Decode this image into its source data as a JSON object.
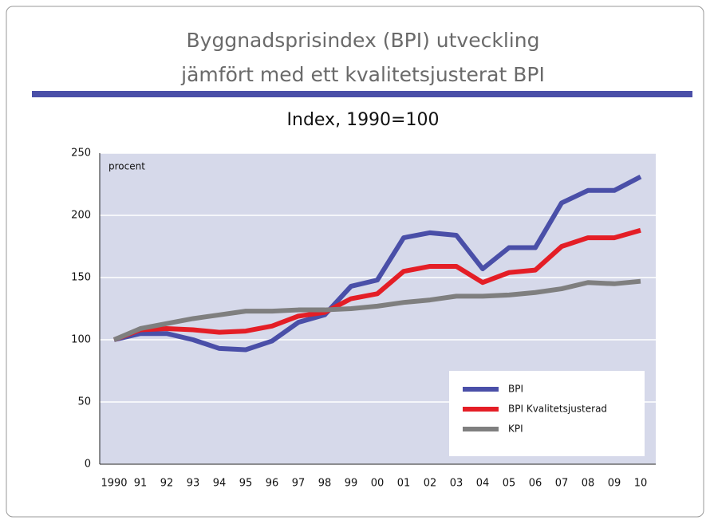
{
  "chart_data": {
    "type": "line",
    "title": "Byggnadsprisindex (BPI) utveckling",
    "title2": "jämfört med ett kvalitetsjusterat BPI",
    "subtitle": "Index, 1990=100",
    "annotation": "procent",
    "categories": [
      "1990",
      "91",
      "92",
      "93",
      "94",
      "95",
      "96",
      "97",
      "98",
      "99",
      "00",
      "01",
      "02",
      "03",
      "04",
      "05",
      "06",
      "07",
      "08",
      "09",
      "10"
    ],
    "series": [
      {
        "name": "BPI",
        "color": "#4a4fa8",
        "values": [
          100,
          105,
          105,
          100,
          93,
          92,
          99,
          114,
          120,
          143,
          148,
          182,
          186,
          184,
          157,
          174,
          174,
          210,
          220,
          220,
          231
        ]
      },
      {
        "name": "BPI Kvalitetsjusterad",
        "color": "#e41e26",
        "values": [
          100,
          108,
          109,
          108,
          106,
          107,
          111,
          119,
          122,
          133,
          137,
          155,
          159,
          159,
          146,
          154,
          156,
          175,
          182,
          182,
          188
        ]
      },
      {
        "name": "KPI",
        "color": "#7f7f7f",
        "values": [
          100,
          109,
          113,
          117,
          120,
          123,
          123,
          124,
          124,
          125,
          127,
          130,
          132,
          135,
          135,
          136,
          138,
          141,
          146,
          145,
          147
        ]
      }
    ],
    "ylim": [
      0,
      250
    ],
    "yticks": [
      0,
      50,
      100,
      150,
      200,
      250
    ],
    "grid": true,
    "legend": "lower right"
  }
}
